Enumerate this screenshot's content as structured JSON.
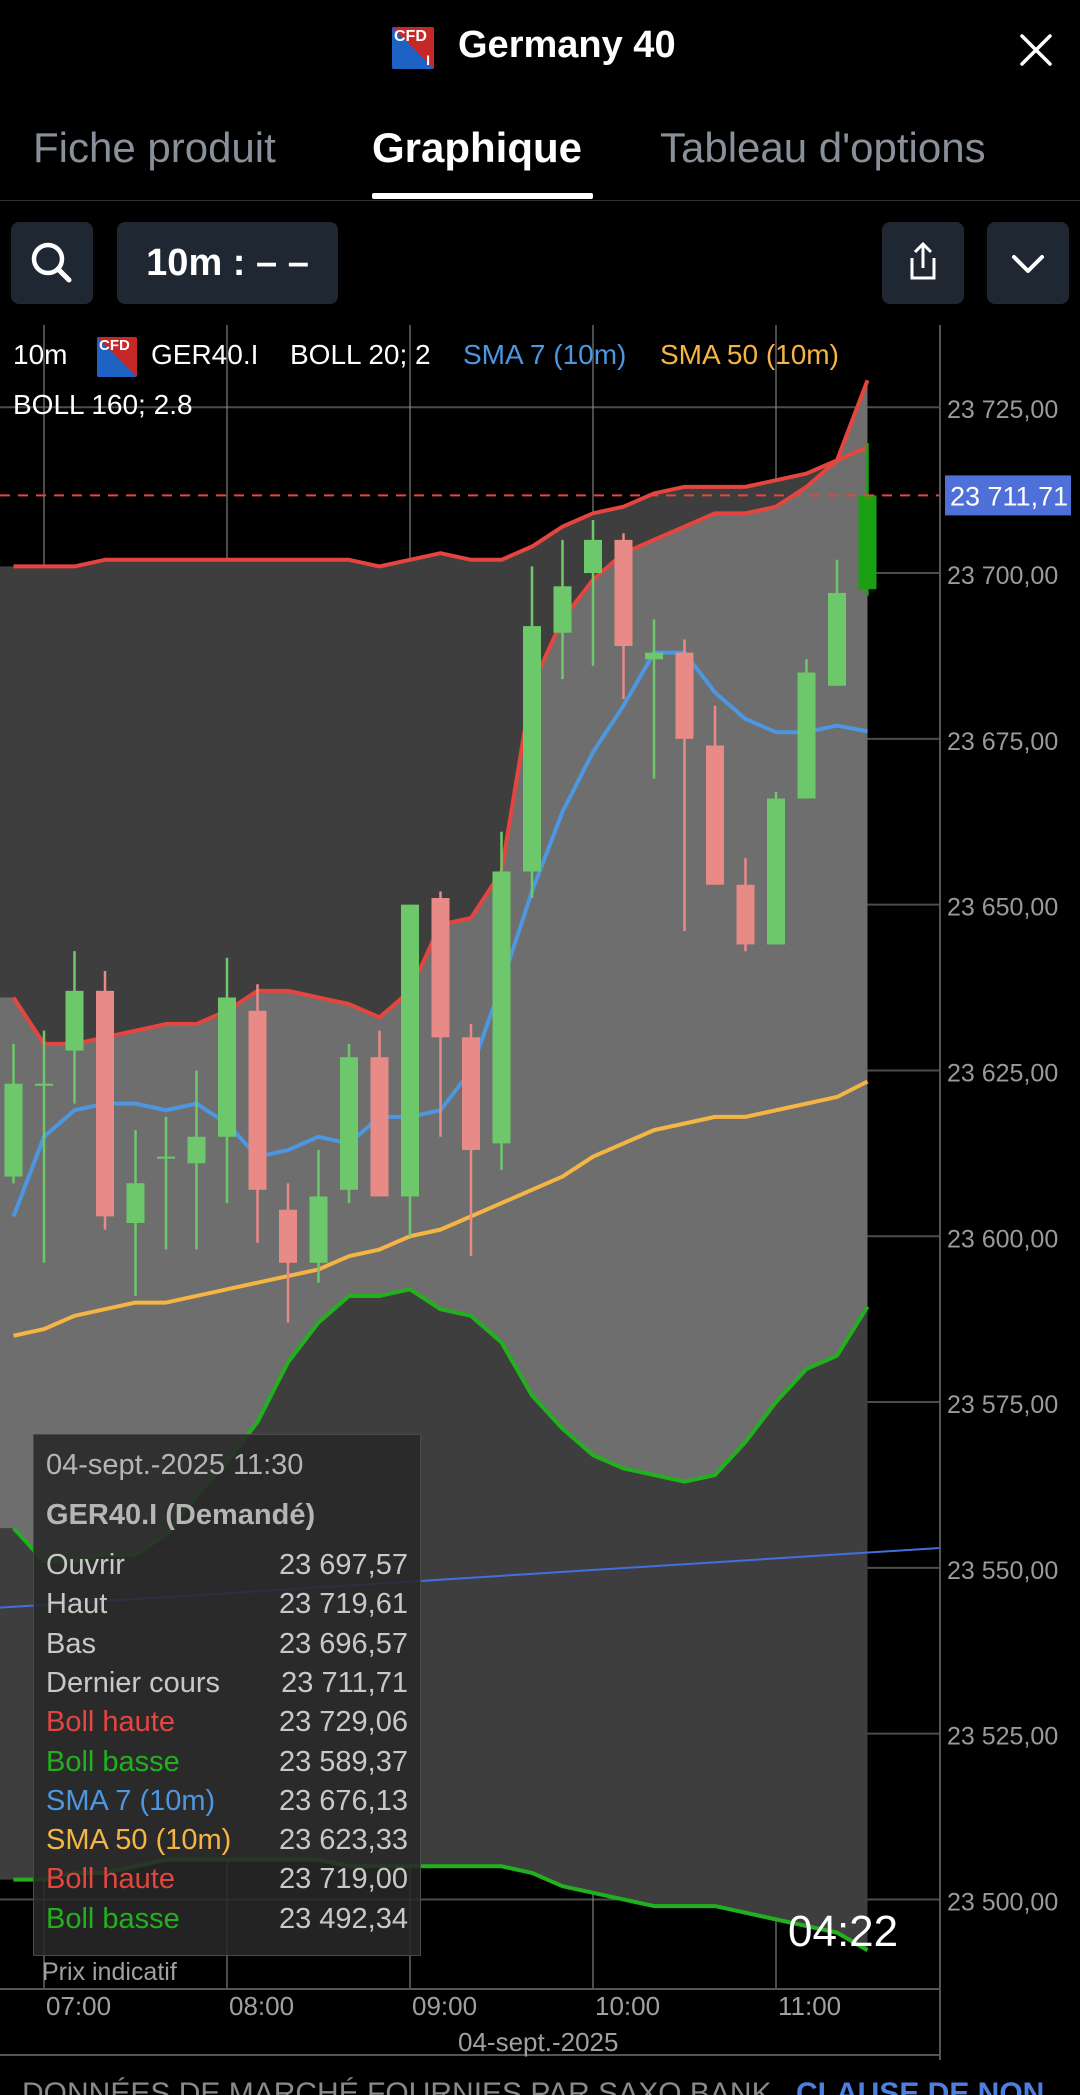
{
  "header": {
    "title": "Germany 40",
    "logo_text": "CFD",
    "logo_sub": "I",
    "close_icon": "close-icon"
  },
  "tabs": [
    {
      "label": "Fiche produit",
      "active": false
    },
    {
      "label": "Graphique",
      "active": true
    },
    {
      "label": "Tableau d'options",
      "active": false
    }
  ],
  "toolbar": {
    "search_icon": "search-icon",
    "interval_label": "10m : – –",
    "share_icon": "share-icon",
    "expand_icon": "chevron-down-icon"
  },
  "chart_overlay": {
    "interval": "10m",
    "instrument": "GER40.I",
    "boll1": "BOLL 20; 2",
    "sma7": "SMA 7 (10m)",
    "sma50": "SMA 50 (10m)",
    "boll2": "BOLL 160; 2.8",
    "last_price_tag": "23 711,71",
    "countdown": "04:22",
    "indicative_price": "Prix indicatif",
    "date_label": "04-sept.-2025"
  },
  "tooltip": {
    "date": "04-sept.-2025 11:30",
    "instrument": "GER40.I (Demandé)",
    "rows": [
      {
        "label": "Ouvrir",
        "value": "23 697,57",
        "color": "#c8c8c8"
      },
      {
        "label": "Haut",
        "value": "23 719,61",
        "color": "#c8c8c8"
      },
      {
        "label": "Bas",
        "value": "23 696,57",
        "color": "#c8c8c8"
      },
      {
        "label": "Dernier cours",
        "value": "23 711,71",
        "color": "#c8c8c8"
      },
      {
        "label": "Boll haute",
        "value": "23 729,06",
        "color": "#e5453f"
      },
      {
        "label": "Boll basse",
        "value": "23 589,37",
        "color": "#22b01e"
      },
      {
        "label": "SMA 7 (10m)",
        "value": "23 676,13",
        "color": "#4d96e0"
      },
      {
        "label": "SMA 50 (10m)",
        "value": "23 623,33",
        "color": "#f5b544"
      },
      {
        "label": "Boll haute",
        "value": "23 719,00",
        "color": "#e5453f"
      },
      {
        "label": "Boll basse",
        "value": "23 492,34",
        "color": "#22b01e"
      }
    ]
  },
  "footer": {
    "text": "DONNÉES DE MARCHÉ FOURNIES PAR SAXO BANK",
    "link": "CLAUSE DE NON"
  },
  "colors": {
    "bull": "#22b01e",
    "bear": "#e5453f",
    "sma7": "#4d96e0",
    "sma50": "#f5b544",
    "price_tag": "#4f6fd9"
  },
  "chart_data": {
    "type": "candlestick",
    "title": "",
    "x_ticks": [
      "07:00",
      "08:00",
      "09:00",
      "10:00",
      "11:00"
    ],
    "x_date": "04-sept.-2025",
    "y_ticks": [
      "23 725,00",
      "23 700,00",
      "23 675,00",
      "23 650,00",
      "23 625,00",
      "23 600,00",
      "23 575,00",
      "23 550,00",
      "23 525,00",
      "23 500,00"
    ],
    "y_tick_values": [
      23725,
      23700,
      23675,
      23650,
      23625,
      23600,
      23575,
      23550,
      23525,
      23500
    ],
    "ylim": [
      23486.5,
      23737.4
    ],
    "x_start": "06:50",
    "interval_minutes": 10,
    "times": [
      "06:50",
      "07:00",
      "07:10",
      "07:20",
      "07:30",
      "07:40",
      "07:50",
      "08:00",
      "08:10",
      "08:20",
      "08:30",
      "08:40",
      "08:50",
      "09:00",
      "09:10",
      "09:20",
      "09:30",
      "09:40",
      "09:50",
      "10:00",
      "10:10",
      "10:20",
      "10:30",
      "10:40",
      "10:50",
      "11:00",
      "11:10",
      "11:20",
      "11:30"
    ],
    "candles": [
      {
        "o": 23609,
        "h": 23629,
        "l": 23608,
        "c": 23623
      },
      {
        "o": 23623,
        "h": 23631,
        "l": 23596,
        "c": 23623
      },
      {
        "o": 23628,
        "h": 23643,
        "l": 23620,
        "c": 23637
      },
      {
        "o": 23637,
        "h": 23640,
        "l": 23601,
        "c": 23603
      },
      {
        "o": 23602,
        "h": 23616,
        "l": 23591,
        "c": 23608
      },
      {
        "o": 23612,
        "h": 23618,
        "l": 23598,
        "c": 23612
      },
      {
        "o": 23611,
        "h": 23625,
        "l": 23598,
        "c": 23615
      },
      {
        "o": 23615,
        "h": 23642,
        "l": 23605,
        "c": 23636
      },
      {
        "o": 23634,
        "h": 23638,
        "l": 23599,
        "c": 23607
      },
      {
        "o": 23604,
        "h": 23608,
        "l": 23587,
        "c": 23596
      },
      {
        "o": 23596,
        "h": 23613,
        "l": 23593,
        "c": 23606
      },
      {
        "o": 23607,
        "h": 23629,
        "l": 23605,
        "c": 23627
      },
      {
        "o": 23627,
        "h": 23631,
        "l": 23608,
        "c": 23606
      },
      {
        "o": 23606,
        "h": 23650,
        "l": 23600,
        "c": 23650
      },
      {
        "o": 23651,
        "h": 23652,
        "l": 23615,
        "c": 23630
      },
      {
        "o": 23630,
        "h": 23632,
        "l": 23597,
        "c": 23613
      },
      {
        "o": 23614,
        "h": 23661,
        "l": 23610,
        "c": 23655
      },
      {
        "o": 23655,
        "h": 23701,
        "l": 23651,
        "c": 23692
      },
      {
        "o": 23691,
        "h": 23705,
        "l": 23684,
        "c": 23698
      },
      {
        "o": 23700,
        "h": 23708,
        "l": 23686,
        "c": 23705
      },
      {
        "o": 23705,
        "h": 23706,
        "l": 23681,
        "c": 23689
      },
      {
        "o": 23687,
        "h": 23693,
        "l": 23669,
        "c": 23688
      },
      {
        "o": 23688,
        "h": 23690,
        "l": 23646,
        "c": 23675
      },
      {
        "o": 23674,
        "h": 23680,
        "l": 23655,
        "c": 23653
      },
      {
        "o": 23653,
        "h": 23657,
        "l": 23643,
        "c": 23644
      },
      {
        "o": 23644,
        "h": 23667,
        "l": 23644,
        "c": 23666
      },
      {
        "o": 23666,
        "h": 23687,
        "l": 23666,
        "c": 23685
      },
      {
        "o": 23683,
        "h": 23702,
        "l": 23684,
        "c": 23697
      },
      {
        "o": 23697.57,
        "h": 23719.61,
        "l": 23696.57,
        "c": 23711.71
      }
    ],
    "series": [
      {
        "name": "BOLL 20; 2",
        "type": "band",
        "color": "#e5453f",
        "upper": [
          23636,
          23629,
          23629,
          23630,
          23631,
          23632,
          23632,
          23634,
          23637,
          23637,
          23636,
          23635,
          23633,
          23637,
          23647,
          23648,
          23655,
          23683,
          23693,
          23699,
          23703,
          23705,
          23707,
          23709,
          23709,
          23710,
          23713,
          23717,
          23729.06
        ],
        "lower": [
          23556,
          23551,
          23551,
          23552,
          23552,
          23555,
          23561,
          23566,
          23572,
          23581,
          23587,
          23591,
          23591,
          23592,
          23589,
          23588,
          23584,
          23576,
          23571,
          23567,
          23565,
          23564,
          23563,
          23564,
          23569,
          23575,
          23580,
          23582,
          23589.37
        ]
      },
      {
        "name": "BOLL 160; 2.8",
        "type": "band",
        "color": "#e5453f",
        "upper": [
          23701,
          23701,
          23701,
          23702,
          23702,
          23702,
          23702,
          23702,
          23702,
          23702,
          23702,
          23702,
          23701,
          23702,
          23703,
          23702,
          23702,
          23704,
          23707,
          23709,
          23710,
          23712,
          23713,
          23713,
          23713,
          23714,
          23715,
          23717,
          23719.0
        ],
        "lower": [
          23503,
          23503,
          23504,
          23504,
          23505,
          23506,
          23506,
          23506,
          23506,
          23506,
          23506,
          23505,
          23505,
          23505,
          23505,
          23505,
          23505,
          23504,
          23502,
          23501,
          23500,
          23499,
          23499,
          23499,
          23498,
          23497,
          23496,
          23495,
          23492.34
        ]
      },
      {
        "name": "SMA 7 (10m)",
        "type": "line",
        "color": "#4d96e0",
        "values": [
          23603,
          23615,
          23619,
          23620,
          23620,
          23619,
          23620,
          23617,
          23612,
          23613,
          23615,
          23614,
          23618,
          23618,
          23619,
          23625,
          23638,
          23652,
          23664,
          23673,
          23680,
          23688,
          23688,
          23682,
          23678,
          23676,
          23676,
          23677,
          23676.13
        ]
      },
      {
        "name": "SMA 50 (10m)",
        "type": "line",
        "color": "#f5b544",
        "values": [
          23585,
          23586,
          23588,
          23589,
          23590,
          23590,
          23591,
          23592,
          23593,
          23594,
          23595,
          23597,
          23598,
          23600,
          23601,
          23603,
          23605,
          23607,
          23609,
          23612,
          23614,
          23616,
          23617,
          23618,
          23618,
          23619,
          23620,
          23621,
          23623.33
        ]
      },
      {
        "name": "trend line",
        "type": "line",
        "color": "#3f6fe0",
        "values": [
          23544,
          23553
        ]
      }
    ]
  }
}
